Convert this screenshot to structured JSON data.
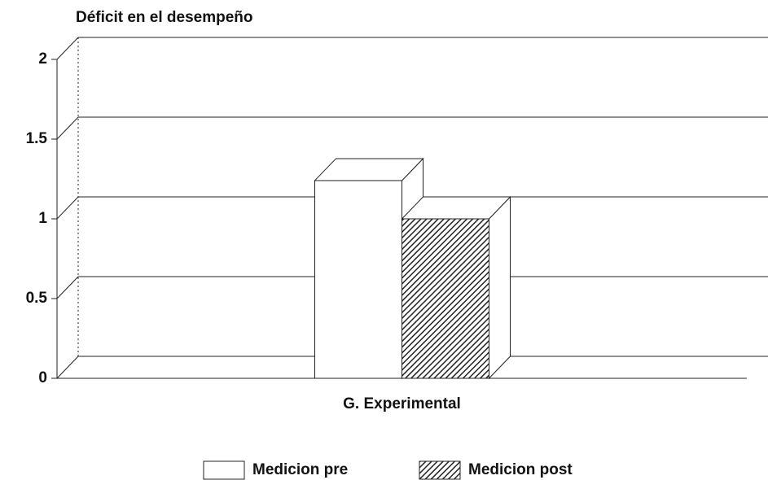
{
  "chart_data": {
    "type": "bar3d",
    "y_label": "Déficit en el desempeño",
    "categories": [
      "G. Experimental"
    ],
    "series": [
      {
        "name": "Medicion pre",
        "color": "#ffffff",
        "values": [
          1.24
        ]
      },
      {
        "name": "Medicion post",
        "color": "hatch",
        "values": [
          1.0
        ]
      }
    ],
    "ylim": [
      0,
      2
    ],
    "yticks": [
      0,
      0.5,
      1,
      1.5,
      2
    ],
    "grid": true,
    "legend": "bottom"
  }
}
